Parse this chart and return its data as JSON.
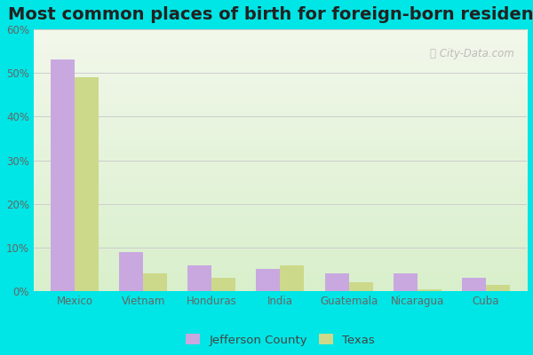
{
  "title": "Most common places of birth for foreign-born residents",
  "categories": [
    "Mexico",
    "Vietnam",
    "Honduras",
    "India",
    "Guatemala",
    "Nicaragua",
    "Cuba"
  ],
  "jefferson_county": [
    53,
    9,
    6,
    5,
    4,
    4,
    3
  ],
  "texas": [
    49,
    4,
    3,
    6,
    2,
    0.5,
    1.5
  ],
  "jefferson_color": "#c9a8e0",
  "texas_color": "#ccd98a",
  "bar_width": 0.35,
  "ylim": [
    0,
    60
  ],
  "yticks": [
    0,
    10,
    20,
    30,
    40,
    50,
    60
  ],
  "ytick_labels": [
    "0%",
    "10%",
    "20%",
    "30%",
    "40%",
    "50%",
    "60%"
  ],
  "title_fontsize": 14,
  "legend_labels": [
    "Jefferson County",
    "Texas"
  ],
  "fig_bg_color": "#00e5e5",
  "watermark": "City-Data.com",
  "grid_color": "#cccccc"
}
